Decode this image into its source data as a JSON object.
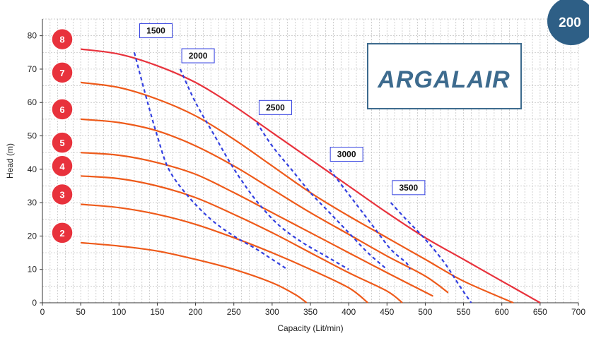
{
  "model_badge": {
    "text": "200",
    "color": "#2e5f86"
  },
  "logo": {
    "text": "ARGALAIR",
    "color": "#3d6b8e"
  },
  "chart_data": {
    "type": "line",
    "title": "",
    "xlabel": "Capacity (Lit/min)",
    "ylabel": "Head (m)",
    "xlim": [
      0,
      700
    ],
    "ylim": [
      0,
      85
    ],
    "xticks": [
      0,
      50,
      100,
      150,
      200,
      250,
      300,
      350,
      400,
      450,
      500,
      550,
      600,
      650,
      700
    ],
    "yticks": [
      0,
      10,
      20,
      30,
      40,
      50,
      60,
      70,
      80
    ],
    "grid": true,
    "pressure_curves": [
      {
        "label": "8",
        "points": [
          [
            50,
            76
          ],
          [
            100,
            74.5
          ],
          [
            150,
            71
          ],
          [
            200,
            66
          ],
          [
            250,
            59
          ],
          [
            300,
            51
          ],
          [
            350,
            43
          ],
          [
            400,
            35
          ],
          [
            450,
            27
          ],
          [
            500,
            19.5
          ],
          [
            550,
            13
          ],
          [
            600,
            6.5
          ],
          [
            650,
            0
          ]
        ]
      },
      {
        "label": "7",
        "points": [
          [
            50,
            66
          ],
          [
            100,
            64.5
          ],
          [
            150,
            61
          ],
          [
            200,
            56
          ],
          [
            250,
            49
          ],
          [
            300,
            41
          ],
          [
            350,
            33
          ],
          [
            400,
            26
          ],
          [
            450,
            19.5
          ],
          [
            500,
            13
          ],
          [
            550,
            6.5
          ],
          [
            615,
            0
          ]
        ]
      },
      {
        "label": "6",
        "points": [
          [
            50,
            55
          ],
          [
            100,
            54
          ],
          [
            150,
            51.5
          ],
          [
            200,
            47
          ],
          [
            250,
            41
          ],
          [
            300,
            34
          ],
          [
            350,
            27
          ],
          [
            400,
            20.5
          ],
          [
            450,
            14
          ],
          [
            500,
            8
          ],
          [
            530,
            3
          ]
        ]
      },
      {
        "label": "5",
        "points": [
          [
            50,
            45
          ],
          [
            100,
            44.2
          ],
          [
            150,
            42
          ],
          [
            200,
            38.5
          ],
          [
            250,
            33
          ],
          [
            300,
            27
          ],
          [
            350,
            21
          ],
          [
            400,
            15
          ],
          [
            450,
            9
          ],
          [
            510,
            2
          ]
        ]
      },
      {
        "label": "4",
        "points": [
          [
            50,
            38
          ],
          [
            100,
            37.2
          ],
          [
            150,
            35
          ],
          [
            200,
            31.5
          ],
          [
            250,
            26.5
          ],
          [
            300,
            21
          ],
          [
            350,
            15
          ],
          [
            400,
            9
          ],
          [
            450,
            3.5
          ],
          [
            470,
            0
          ]
        ]
      },
      {
        "label": "3",
        "points": [
          [
            50,
            29.5
          ],
          [
            100,
            28.5
          ],
          [
            150,
            26.5
          ],
          [
            200,
            23.5
          ],
          [
            250,
            19.5
          ],
          [
            300,
            15
          ],
          [
            350,
            10
          ],
          [
            400,
            4.5
          ],
          [
            425,
            0
          ]
        ]
      },
      {
        "label": "2",
        "points": [
          [
            50,
            18
          ],
          [
            100,
            17
          ],
          [
            150,
            15.5
          ],
          [
            200,
            13
          ],
          [
            250,
            10
          ],
          [
            300,
            6
          ],
          [
            330,
            2.5
          ],
          [
            345,
            0
          ]
        ]
      }
    ],
    "flow_curves": [
      {
        "label": "1500",
        "label_at": [
          127,
          81.5
        ],
        "points": [
          [
            120,
            75
          ],
          [
            135,
            62
          ],
          [
            150,
            50
          ],
          [
            165,
            40
          ],
          [
            190,
            32
          ],
          [
            220,
            25
          ],
          [
            250,
            20
          ],
          [
            280,
            16
          ],
          [
            300,
            13
          ],
          [
            320,
            10
          ]
        ]
      },
      {
        "label": "2000",
        "label_at": [
          182,
          74
        ],
        "points": [
          [
            180,
            70
          ],
          [
            200,
            60
          ],
          [
            225,
            50
          ],
          [
            245,
            42
          ],
          [
            265,
            35
          ],
          [
            285,
            29
          ],
          [
            310,
            23
          ],
          [
            340,
            18
          ],
          [
            370,
            14
          ],
          [
            400,
            10
          ]
        ]
      },
      {
        "label": "2500",
        "label_at": [
          283,
          58.5
        ],
        "points": [
          [
            280,
            54
          ],
          [
            300,
            47
          ],
          [
            325,
            40
          ],
          [
            350,
            33
          ],
          [
            375,
            27
          ],
          [
            400,
            21
          ],
          [
            425,
            15
          ],
          [
            450,
            10
          ]
        ]
      },
      {
        "label": "3000",
        "label_at": [
          376,
          44.5
        ],
        "points": [
          [
            375,
            40
          ],
          [
            395,
            34
          ],
          [
            415,
            28
          ],
          [
            435,
            22
          ],
          [
            455,
            16
          ],
          [
            475,
            12
          ],
          [
            480,
            10
          ]
        ]
      },
      {
        "label": "3500",
        "label_at": [
          457,
          34.5
        ],
        "points": [
          [
            455,
            30
          ],
          [
            475,
            25
          ],
          [
            500,
            19
          ],
          [
            525,
            12
          ],
          [
            545,
            5
          ],
          [
            560,
            0
          ]
        ]
      }
    ]
  }
}
